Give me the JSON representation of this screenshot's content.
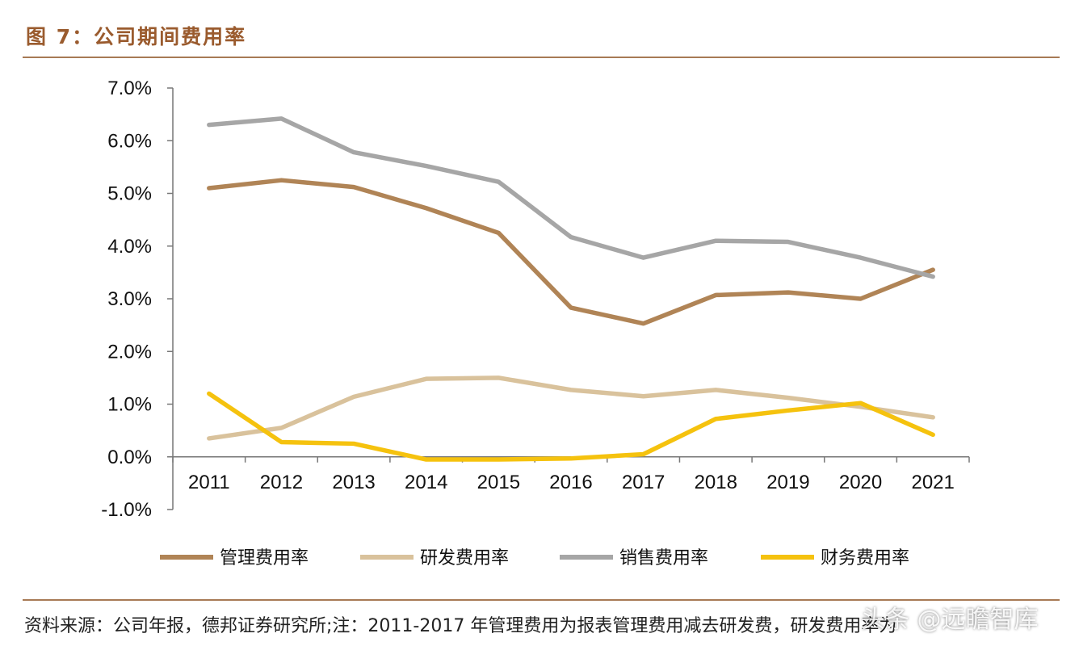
{
  "figure_title": "图 7：公司期间费用率",
  "source_note": "资料来源：公司年报，德邦证券研究所;注：2011-2017 年管理费用为报表管理费用减去研发费，研发费用率为",
  "watermark": "头条 @远瞻智库",
  "colors": {
    "rule": "#a77a55",
    "title": "#9a5b2e"
  },
  "chart_data": {
    "type": "line",
    "categories": [
      "2011",
      "2012",
      "2013",
      "2014",
      "2015",
      "2016",
      "2017",
      "2018",
      "2019",
      "2020",
      "2021"
    ],
    "ylim": [
      -1.0,
      7.0
    ],
    "yticks": [
      7.0,
      6.0,
      5.0,
      4.0,
      3.0,
      2.0,
      1.0,
      0.0,
      -1.0
    ],
    "ytick_labels": [
      "7.0%",
      "6.0%",
      "5.0%",
      "4.0%",
      "3.0%",
      "2.0%",
      "1.0%",
      "0.0%",
      "-1.0%"
    ],
    "legend_position": "bottom",
    "grid": false,
    "series": [
      {
        "name": "管理费用率",
        "color": "#b08456",
        "values": [
          5.1,
          5.25,
          5.12,
          4.72,
          4.25,
          2.83,
          2.53,
          3.07,
          3.12,
          3.0,
          3.55
        ]
      },
      {
        "name": "研发费用率",
        "color": "#d9c29c",
        "values": [
          0.35,
          0.55,
          1.14,
          1.48,
          1.5,
          1.27,
          1.15,
          1.27,
          1.12,
          0.95,
          0.75
        ]
      },
      {
        "name": "销售费用率",
        "color": "#a6a6a6",
        "values": [
          6.3,
          6.42,
          5.78,
          5.52,
          5.22,
          4.17,
          3.78,
          4.1,
          4.08,
          3.78,
          3.42
        ]
      },
      {
        "name": "财务费用率",
        "color": "#f5c20e",
        "values": [
          1.2,
          0.28,
          0.25,
          -0.05,
          -0.05,
          -0.03,
          0.05,
          0.72,
          0.88,
          1.02,
          0.42
        ]
      }
    ]
  }
}
